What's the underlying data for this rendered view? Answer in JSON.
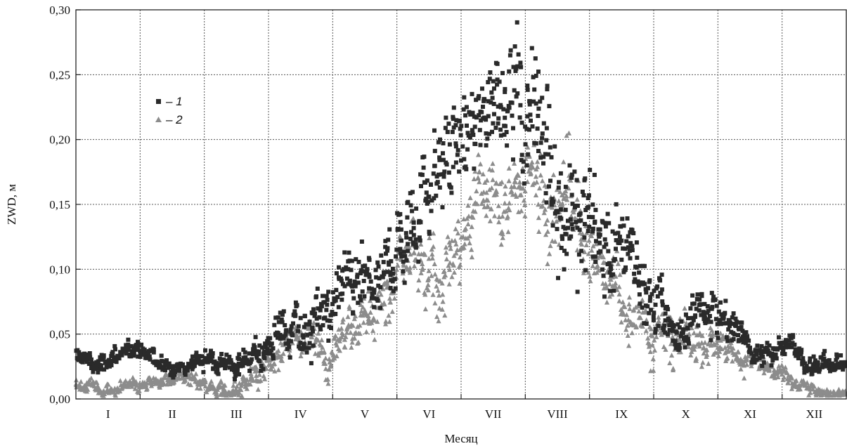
{
  "chart_data": {
    "type": "scatter",
    "xlabel": "Месяц",
    "ylabel": "ZWD, м",
    "ylim": [
      0,
      0.3
    ],
    "yticks": [
      "0,00",
      "0,05",
      "0,10",
      "0,15",
      "0,20",
      "0,25",
      "0,30"
    ],
    "categories": [
      "I",
      "II",
      "III",
      "IV",
      "V",
      "VI",
      "VII",
      "VIII",
      "IX",
      "X",
      "XI",
      "XII"
    ],
    "grid": true,
    "legend_position": "top-left",
    "legend": [
      {
        "label": "– 1",
        "marker": "square",
        "color": "#2a2a2a"
      },
      {
        "label": "– 2",
        "marker": "triangle",
        "color": "#8c8c8c"
      }
    ],
    "series": [
      {
        "name": "1",
        "marker": "square",
        "color": "#2a2a2a",
        "monthly_center": [
          0.032,
          0.028,
          0.03,
          0.06,
          0.085,
          0.14,
          0.185,
          0.2,
          0.11,
          0.075,
          0.04,
          0.03
        ],
        "monthly_spread": [
          0.008,
          0.007,
          0.01,
          0.025,
          0.03,
          0.045,
          0.045,
          0.06,
          0.035,
          0.025,
          0.012,
          0.008
        ],
        "peak": 0.295
      },
      {
        "name": "2",
        "marker": "triangle",
        "color": "#8c8c8c",
        "monthly_center": [
          0.01,
          0.012,
          0.02,
          0.04,
          0.055,
          0.11,
          0.145,
          0.155,
          0.085,
          0.05,
          0.02,
          0.008
        ],
        "monthly_spread": [
          0.006,
          0.006,
          0.01,
          0.015,
          0.02,
          0.035,
          0.03,
          0.04,
          0.025,
          0.02,
          0.01,
          0.006
        ],
        "peak": 0.21
      }
    ]
  }
}
